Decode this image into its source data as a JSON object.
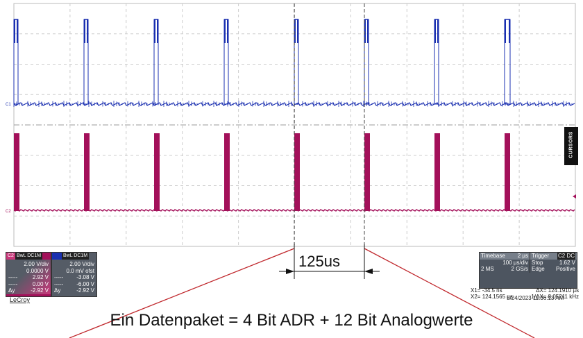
{
  "cursors_tab": "CURSORS",
  "markers": {
    "c1": "C1",
    "c2": "C2"
  },
  "delta_label": "125us",
  "caption": "Ein Datenpaket = 4 Bit ADR + 12 Bit Analogwerte",
  "logo": "LeCroy",
  "date": "5/24/2023 11:36:13 AM",
  "ch2": {
    "name": "C2",
    "tag": "BwL DC1M",
    "vdiv": "2.00 V/div",
    "ofst": "0.0000 V",
    "r1": "2.92 V",
    "r2": "0.00 V",
    "dy_label": "Δy",
    "dy": "-2.92 V"
  },
  "ch1": {
    "tag": "BwL DC1M",
    "vdiv": "2.00 V/div",
    "ofst": "0.0 mV ofst",
    "r1": "-3.08 V",
    "r2": "-6.00 V",
    "dy_label": "Δy",
    "dy": "-2.92 V"
  },
  "timebase": {
    "label": "Timebase",
    "value": "2 µs",
    "div": "100 µs/div",
    "ms": "2 MS",
    "rate": "2 GS/s"
  },
  "trigger": {
    "label": "Trigger",
    "ch": "C2 DC",
    "mode": "Stop",
    "level": "1.62 V",
    "type": "Edge",
    "slope": "Positive"
  },
  "cursor_readout": {
    "x1": "X1=",
    "x1v": "-34.5 ns",
    "dx": "ΔX=",
    "dxv": "124.1910 µs",
    "x2": "X2=",
    "x2v": "124.1565 µs",
    "inv": "1/ΔX=",
    "invv": "8.05211 kHz"
  },
  "colors": {
    "ch1": "#1a2fb0",
    "ch2": "#a3105a",
    "annot": "#c0282d"
  }
}
